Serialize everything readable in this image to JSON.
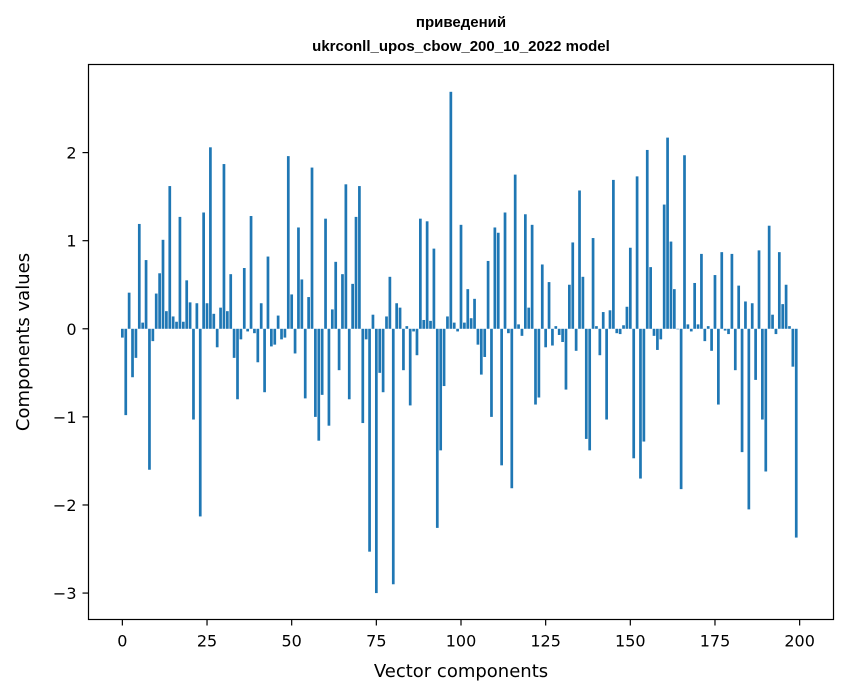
{
  "chart_data": {
    "type": "bar",
    "title": "приведений",
    "subtitle": "ukrconll_upos_cbow_200_10_2022 model",
    "xlabel": "Vector components",
    "ylabel": "Components values",
    "xlim": [
      -10,
      210
    ],
    "ylim": [
      -3.3,
      3.0
    ],
    "x_ticks": [
      0,
      25,
      50,
      75,
      100,
      125,
      150,
      175,
      200
    ],
    "x_tick_labels": [
      "0",
      "25",
      "50",
      "75",
      "100",
      "125",
      "150",
      "175",
      "200"
    ],
    "y_ticks": [
      -3,
      -2,
      -1,
      0,
      1,
      2
    ],
    "y_tick_labels": [
      "−3",
      "−2",
      "−1",
      "0",
      "1",
      "2"
    ],
    "grid": false,
    "bar_color": "#1f77b4",
    "categories_start": 0,
    "values": [
      -0.1,
      -0.98,
      0.41,
      -0.55,
      -0.33,
      1.19,
      0.07,
      0.78,
      -1.6,
      -0.14,
      0.4,
      0.63,
      1.01,
      0.2,
      1.62,
      0.14,
      0.08,
      1.27,
      0.08,
      0.55,
      0.3,
      -1.03,
      0.29,
      -2.13,
      1.32,
      0.29,
      2.06,
      0.17,
      -0.21,
      0.24,
      1.87,
      0.2,
      0.62,
      -0.33,
      -0.8,
      -0.12,
      0.69,
      -0.03,
      1.28,
      -0.05,
      -0.38,
      0.29,
      -0.72,
      0.82,
      -0.2,
      -0.18,
      0.15,
      -0.12,
      -0.1,
      1.96,
      0.39,
      -0.28,
      1.15,
      0.56,
      -0.79,
      0.36,
      1.83,
      -1.0,
      -1.27,
      -0.75,
      1.25,
      -1.1,
      0.22,
      0.76,
      -0.47,
      0.62,
      1.64,
      -0.8,
      0.51,
      1.27,
      1.62,
      -1.07,
      -0.12,
      -2.53,
      0.16,
      -3.0,
      -0.5,
      -0.72,
      0.14,
      0.59,
      -2.9,
      0.29,
      0.24,
      -0.47,
      0.03,
      -0.87,
      -0.03,
      -0.3,
      1.25,
      0.1,
      1.22,
      0.09,
      0.91,
      -2.26,
      -1.38,
      -0.65,
      0.14,
      2.69,
      0.07,
      -0.03,
      1.18,
      0.07,
      0.45,
      0.12,
      0.34,
      -0.18,
      -0.52,
      -0.32,
      0.77,
      -1.0,
      1.15,
      1.09,
      -1.55,
      1.32,
      -0.05,
      -1.81,
      1.75,
      0.05,
      -0.08,
      1.3,
      0.24,
      1.18,
      -0.86,
      -0.78,
      0.73,
      -0.21,
      0.53,
      -0.19,
      0.03,
      -0.07,
      -0.15,
      -0.69,
      0.5,
      0.98,
      -0.25,
      1.57,
      0.59,
      -1.25,
      -1.38,
      1.03,
      0.03,
      -0.3,
      0.19,
      -1.03,
      0.21,
      1.69,
      -0.05,
      -0.06,
      0.04,
      0.25,
      0.92,
      -1.47,
      1.73,
      -1.7,
      -1.28,
      2.03,
      0.7,
      -0.08,
      -0.24,
      -0.12,
      1.41,
      2.17,
      0.99,
      0.45,
      0.0,
      -1.82,
      1.97,
      0.05,
      -0.03,
      0.52,
      0.05,
      0.85,
      -0.14,
      0.03,
      -0.25,
      0.61,
      -0.86,
      0.87,
      -0.02,
      -0.06,
      0.85,
      -0.47,
      0.49,
      -1.4,
      0.31,
      -2.05,
      0.29,
      -0.58,
      0.89,
      -1.03,
      -1.62,
      1.17,
      0.16,
      -0.06,
      0.87,
      0.28,
      0.5,
      0.03,
      -0.43,
      -2.37
    ]
  }
}
